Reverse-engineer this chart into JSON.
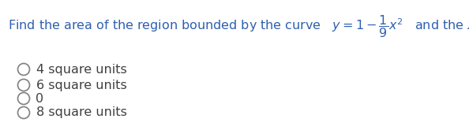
{
  "options": [
    "4 square units",
    "6 square units",
    "0",
    "8 square units"
  ],
  "text_color": "#3060b0",
  "option_color": "#404040",
  "circle_color": "#808080",
  "bg_color": "#ffffff",
  "question_fontsize": 11.5,
  "option_fontsize": 11.5,
  "fig_width": 5.94,
  "fig_height": 1.65,
  "dpi": 100
}
